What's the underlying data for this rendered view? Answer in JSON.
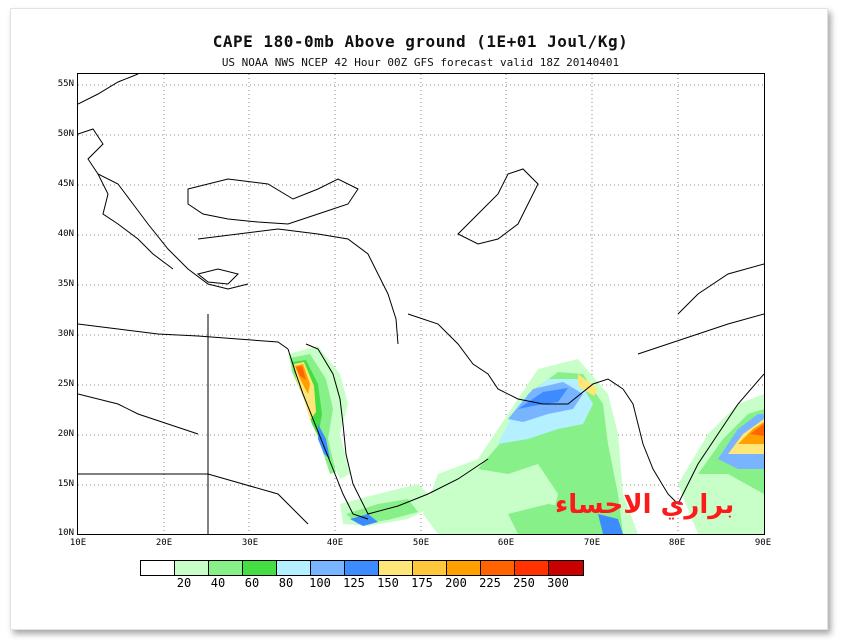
{
  "title": "CAPE 180-0mb Above ground (1E+01 Joul/Kg)",
  "subtitle": "US NOAA NWS NCEP 42 Hour 00Z GFS forecast valid 18Z 20140401",
  "watermark": "براري الاحساء",
  "map": {
    "lat_ticks": [
      "55N",
      "50N",
      "45N",
      "40N",
      "35N",
      "30N",
      "25N",
      "20N",
      "15N",
      "10N"
    ],
    "lon_ticks": [
      "10E",
      "20E",
      "30E",
      "40E",
      "50E",
      "60E",
      "70E",
      "80E",
      "90E"
    ],
    "lat_range": [
      10,
      56
    ],
    "lon_range": [
      10,
      90
    ],
    "grid": "dotted",
    "coastline_color": "#000000"
  },
  "colorbar": {
    "colors": [
      "#ffffff",
      "#c8ffc8",
      "#88f088",
      "#44dd44",
      "#b4f0ff",
      "#78b4ff",
      "#3c8cff",
      "#ffe678",
      "#ffc83c",
      "#ffa000",
      "#ff6400",
      "#ff3200",
      "#c80000"
    ],
    "labels": [
      "20",
      "40",
      "60",
      "80",
      "100",
      "125",
      "150",
      "175",
      "200",
      "225",
      "250",
      "300"
    ]
  }
}
